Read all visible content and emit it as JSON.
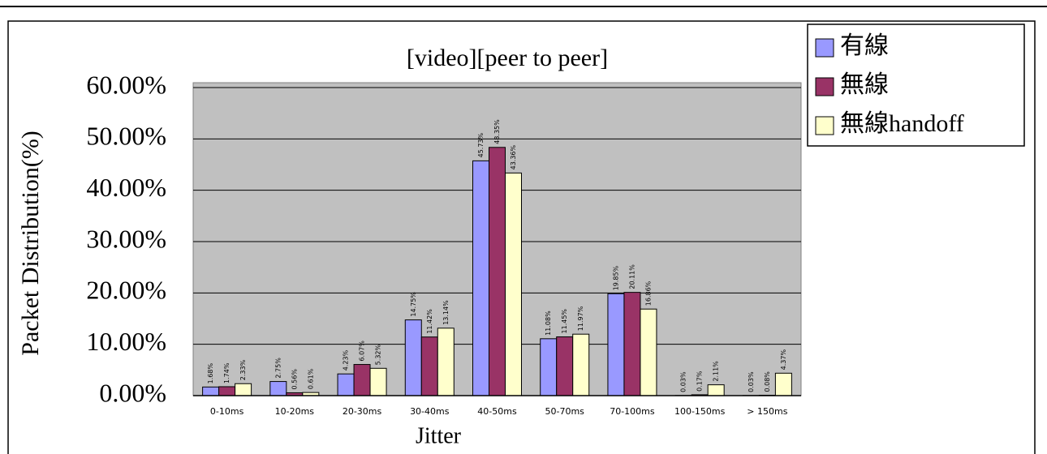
{
  "chart_data": {
    "type": "bar",
    "title": "[video][peer to peer]",
    "x_label": "Jitter",
    "y_label": "Packet Distribution(%)",
    "categories": [
      "0-10ms",
      "10-20ms",
      "20-30ms",
      "30-40ms",
      "40-50ms",
      "50-70ms",
      "70-100ms",
      "100-150ms",
      "> 150ms"
    ],
    "series": [
      {
        "name": "有線",
        "color": "#9999ff",
        "values": [
          1.68,
          2.75,
          4.23,
          14.75,
          45.73,
          11.08,
          19.85,
          0.03,
          0.03
        ],
        "value_labels": [
          "1.68%",
          "2.75%",
          "4.23%",
          "14.75%",
          "45.73%",
          "11.08%",
          "19.85%",
          "0.03%",
          "0.03%"
        ]
      },
      {
        "name": "無線",
        "color": "#993366",
        "values": [
          1.74,
          0.56,
          6.07,
          11.42,
          48.35,
          11.45,
          20.11,
          0.17,
          0.08
        ],
        "value_labels": [
          "1.74%",
          "0.56%",
          "6.07%",
          "11.42%",
          "48.35%",
          "11.45%",
          "20.11%",
          "0.17%",
          "0.08%"
        ]
      },
      {
        "name": "無線handoff",
        "color": "#ffffcc",
        "values": [
          2.33,
          0.61,
          5.32,
          13.14,
          43.36,
          11.97,
          16.86,
          2.11,
          4.37
        ],
        "value_labels": [
          "2.33%",
          "0.61%",
          "5.32%",
          "13.14%",
          "43.36%",
          "11.97%",
          "16.86%",
          "2.11%",
          "4.37%"
        ]
      }
    ],
    "ylim": [
      0,
      60
    ],
    "yticks": [
      {
        "value": 0,
        "label": "0.00%"
      },
      {
        "value": 10,
        "label": "10.00%"
      },
      {
        "value": 20,
        "label": "20.00%"
      },
      {
        "value": 30,
        "label": "30.00%"
      },
      {
        "value": 40,
        "label": "40.00%"
      },
      {
        "value": 50,
        "label": "50.00%"
      },
      {
        "value": 60,
        "label": "60.00%"
      }
    ],
    "grid": true,
    "plot_background": "#c0c0c0",
    "legend": "top-right"
  }
}
